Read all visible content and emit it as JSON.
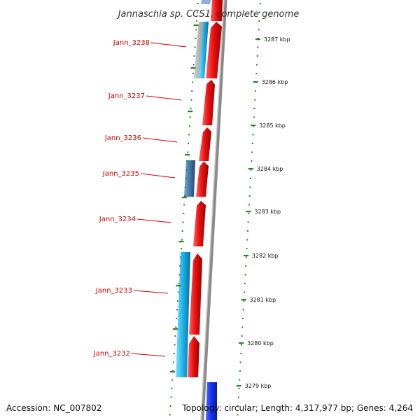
{
  "title": "Jannaschia sp. CCS1, complete genome",
  "accession": "Accession: NC_007802",
  "topology": "Topology: circular; Length: 4,317,977 bp; Genes: 4,264",
  "colors": {
    "forward_cds": "#ee1111",
    "reverse_cds": "#22bbee",
    "reverse_steel": "#4477aa",
    "reverse_blue": "#1133ee",
    "backbone": "#888888",
    "label": "#cc0000",
    "tick": "#228822"
  },
  "ticks": [
    {
      "label": "3287 kbp",
      "kbp": 3287
    },
    {
      "label": "3286 kbp",
      "kbp": 3286
    },
    {
      "label": "3285 kbp",
      "kbp": 3285
    },
    {
      "label": "3284 kbp",
      "kbp": 3284
    },
    {
      "label": "3283 kbp",
      "kbp": 3283
    },
    {
      "label": "3282 kbp",
      "kbp": 3282
    },
    {
      "label": "3281 kbp",
      "kbp": 3281
    },
    {
      "label": "3280 kbp",
      "kbp": 3280
    },
    {
      "label": "3279 kbp",
      "kbp": 3279
    }
  ],
  "gene_labels": [
    {
      "name": "Jann_3238"
    },
    {
      "name": "Jann_3237"
    },
    {
      "name": "Jann_3236"
    },
    {
      "name": "Jann_3235"
    },
    {
      "name": "Jann_3234"
    },
    {
      "name": "Jann_3233"
    },
    {
      "name": "Jann_3232"
    }
  ]
}
